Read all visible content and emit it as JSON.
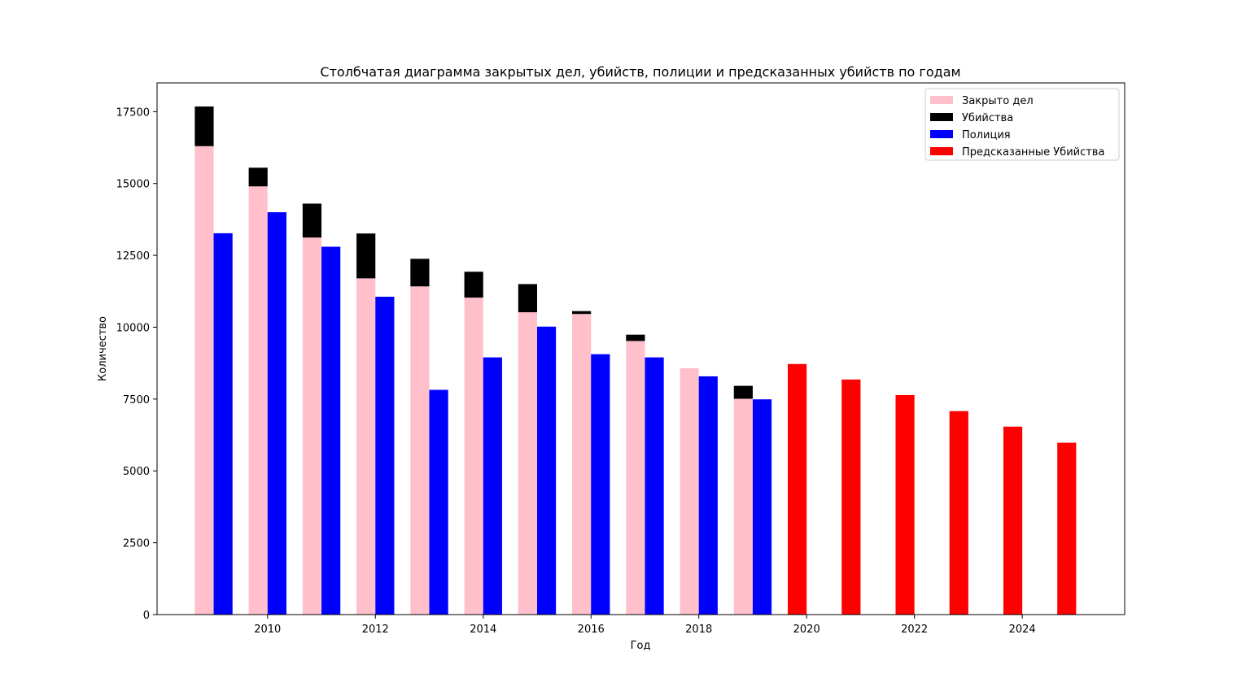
{
  "chart_data": {
    "type": "bar",
    "title": "Столбчатая диаграмма закрытых дел, убийств, полиции и предсказанных убийств по годам",
    "xlabel": "Год",
    "ylabel": "Количество",
    "ylim": [
      0,
      18500
    ],
    "xlim": [
      2007.95,
      2025.9
    ],
    "yticks": [
      0,
      2500,
      5000,
      7500,
      10000,
      12500,
      15000,
      17500
    ],
    "xticks": [
      2010,
      2012,
      2014,
      2016,
      2018,
      2020,
      2022,
      2024
    ],
    "grid": false,
    "legend_position": "top-right",
    "years": [
      2009,
      2010,
      2011,
      2012,
      2013,
      2014,
      2015,
      2016,
      2017,
      2018,
      2019
    ],
    "series": [
      {
        "name": "Закрыто дел",
        "color": "#ffc0cb",
        "values": [
          16300,
          14900,
          13120,
          11700,
          11420,
          11030,
          10520,
          10460,
          9520,
          8570,
          7510
        ]
      },
      {
        "name": "Убийства",
        "color": "#000000",
        "stacked_on": "Закрыто дел",
        "values": [
          1380,
          650,
          1180,
          1560,
          960,
          900,
          980,
          100,
          220,
          0,
          450
        ]
      },
      {
        "name": "Полиция",
        "color": "#0000ff",
        "values": [
          13270,
          14000,
          12800,
          11060,
          7820,
          8950,
          10020,
          9060,
          8950,
          8290,
          7490
        ]
      },
      {
        "name": "Предсказанные Убийства",
        "color": "#ff0000",
        "years": [
          2020,
          2021,
          2022,
          2023,
          2024,
          2025
        ],
        "values": [
          8720,
          8180,
          7640,
          7080,
          6540,
          5980
        ]
      }
    ]
  }
}
